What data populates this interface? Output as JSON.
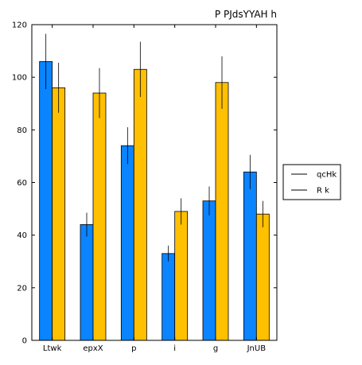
{
  "chart_data": {
    "type": "bar",
    "title": "P  PJdsYYAH h",
    "xlabel": "",
    "ylabel": "",
    "categories": [
      "Ltwk",
      "epxX",
      "p",
      "i",
      "g",
      "JnUB"
    ],
    "ylim": [
      0,
      120
    ],
    "yticks": [
      0,
      20,
      40,
      60,
      80,
      100,
      120
    ],
    "grid": false,
    "legend_position": "right",
    "series": [
      {
        "name": "qcHk",
        "color": "#0a84ff",
        "values": [
          106,
          44,
          74,
          33,
          53,
          64
        ],
        "errors": [
          10.5,
          4.5,
          7,
          3,
          5.5,
          6.5
        ]
      },
      {
        "name": "R k",
        "color": "#ffc000",
        "values": [
          96,
          94,
          103,
          49,
          98,
          48
        ],
        "errors": [
          9.5,
          9.5,
          10.5,
          5,
          10,
          5
        ]
      }
    ]
  }
}
